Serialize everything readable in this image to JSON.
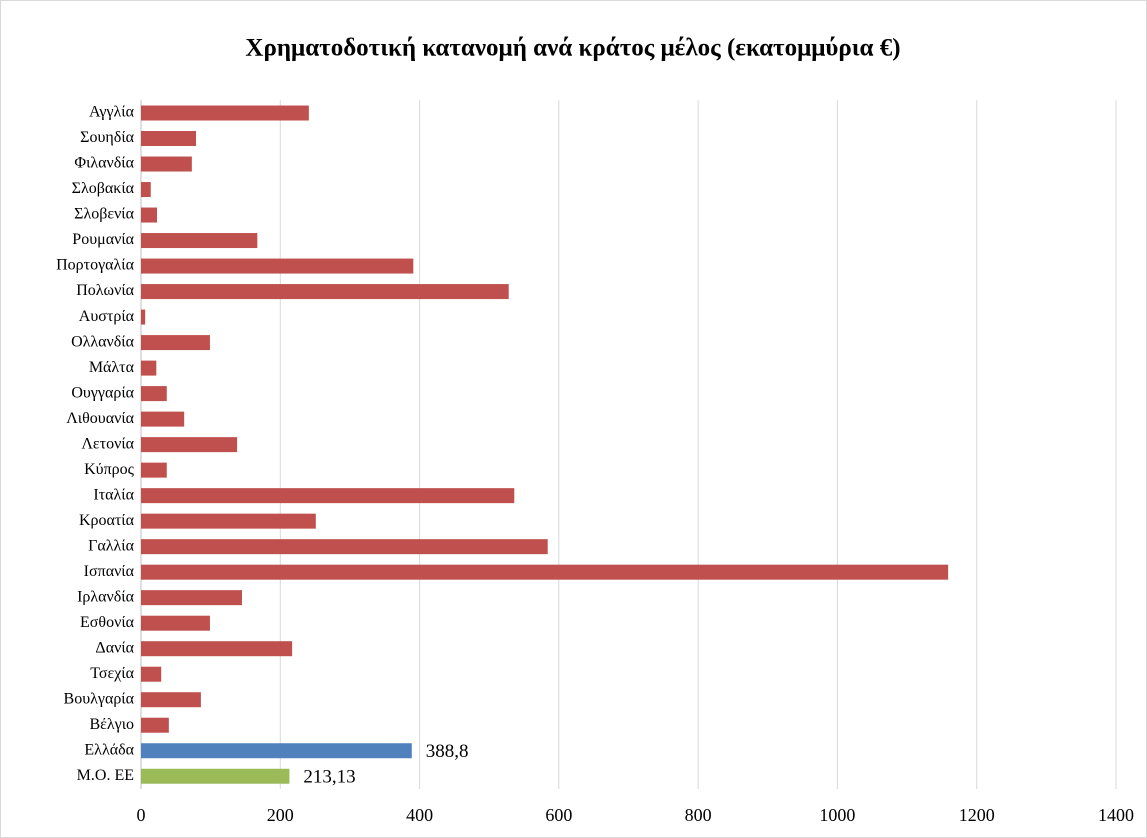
{
  "chart_data": {
    "type": "barh",
    "title": "Χρηματοδοτική κατανομή ανά κράτος μέλος (εκατομμύρια €)",
    "categories": [
      "Αγγλία",
      "Σουηδία",
      "Φιλανδία",
      "Σλοβακία",
      "Σλοβενία",
      "Ρουμανία",
      "Πορτογαλία",
      "Πολωνία",
      "Αυστρία",
      "Ολλανδία",
      "Μάλτα",
      "Ουγγαρία",
      "Λιθουανία",
      "Λετονία",
      "Κύπρος",
      "Ιταλία",
      "Κροατία",
      "Γαλλία",
      "Ισπανία",
      "Ιρλανδία",
      "Εσθονία",
      "Δανία",
      "Τσεχία",
      "Βουλγαρία",
      "Βέλγιο",
      "Ελλάδα",
      "Μ.Ο. ΕΕ"
    ],
    "values": [
      241,
      79,
      73,
      14,
      23,
      167,
      391,
      528,
      6,
      99,
      22,
      37,
      62,
      138,
      37,
      536,
      251,
      584,
      1159,
      145,
      99,
      217,
      29,
      86,
      40,
      388.8,
      213.13
    ],
    "value_labels": [
      null,
      null,
      null,
      null,
      null,
      null,
      null,
      null,
      null,
      null,
      null,
      null,
      null,
      null,
      null,
      null,
      null,
      null,
      null,
      null,
      null,
      null,
      null,
      null,
      null,
      "388,8",
      "213,13"
    ],
    "colors": [
      "#c0504d",
      "#c0504d",
      "#c0504d",
      "#c0504d",
      "#c0504d",
      "#c0504d",
      "#c0504d",
      "#c0504d",
      "#c0504d",
      "#c0504d",
      "#c0504d",
      "#c0504d",
      "#c0504d",
      "#c0504d",
      "#c0504d",
      "#c0504d",
      "#c0504d",
      "#c0504d",
      "#c0504d",
      "#c0504d",
      "#c0504d",
      "#c0504d",
      "#c0504d",
      "#c0504d",
      "#c0504d",
      "#4f81bd",
      "#9bbb59"
    ],
    "xlim": [
      0,
      1400
    ],
    "xticks": [
      0,
      200,
      400,
      600,
      800,
      1000,
      1200,
      1400
    ],
    "grid": true
  }
}
